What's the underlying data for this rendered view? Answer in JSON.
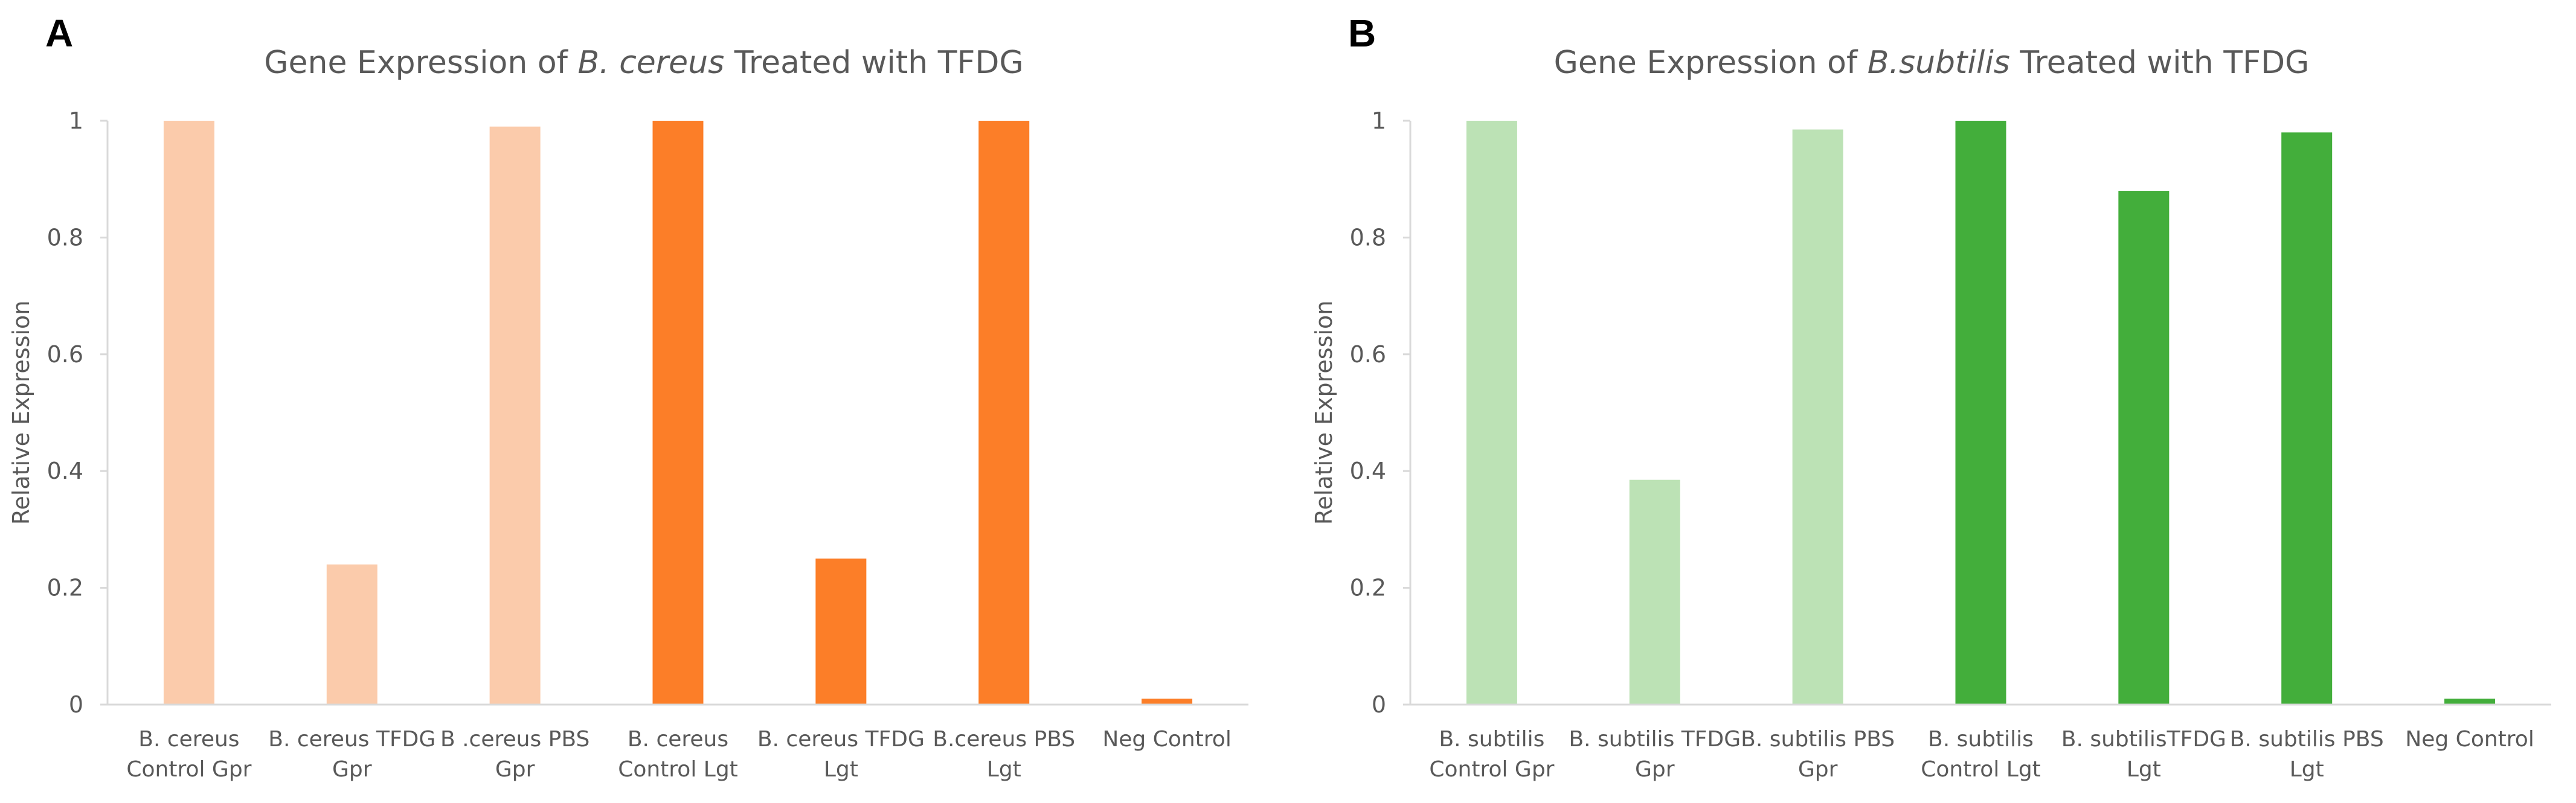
{
  "chart_data": [
    {
      "panel_label": "A",
      "type": "bar",
      "title_prefix": "Gene Expression of ",
      "title_italic": "B. cereus",
      "title_suffix": " Treated with TFDG",
      "ylabel": "Relative Expression",
      "xlabel": "",
      "ylim": [
        0,
        1
      ],
      "yticks": [
        "0",
        "0.2",
        "0.4",
        "0.6",
        "0.8",
        "1"
      ],
      "grid": false,
      "categories": [
        [
          "B. cereus",
          "Control Gpr"
        ],
        [
          "B. cereus TFDG",
          "Gpr"
        ],
        [
          "B .cereus PBS",
          "Gpr"
        ],
        [
          "B. cereus",
          "Control Lgt"
        ],
        [
          "B. cereus TFDG",
          "Lgt"
        ],
        [
          "B.cereus PBS",
          "Lgt"
        ],
        [
          "Neg Control"
        ]
      ],
      "values": [
        1.0,
        0.24,
        0.99,
        1.0,
        0.25,
        1.0,
        0.01
      ],
      "colors": [
        "#FBCBAB",
        "#FBCBAB",
        "#FBCBAB",
        "#FC7E28",
        "#FC7E28",
        "#FC7E28",
        "#FC7E28"
      ]
    },
    {
      "panel_label": "B",
      "type": "bar",
      "title_prefix": "Gene Expression of ",
      "title_italic": "B.subtilis",
      "title_suffix": " Treated with TFDG",
      "ylabel": "Relative Expression",
      "xlabel": "",
      "ylim": [
        0,
        1
      ],
      "yticks": [
        "0",
        "0.2",
        "0.4",
        "0.6",
        "0.8",
        "1"
      ],
      "grid": false,
      "categories": [
        [
          "B. subtilis",
          "Control Gpr"
        ],
        [
          "B. subtilis TFDG",
          "Gpr"
        ],
        [
          "B. subtilis PBS",
          "Gpr"
        ],
        [
          "B. subtilis",
          "Control Lgt"
        ],
        [
          "B. subtilisTFDG",
          "Lgt"
        ],
        [
          "B. subtilis PBS",
          "Lgt"
        ],
        [
          "Neg Control"
        ]
      ],
      "values": [
        1.0,
        0.385,
        0.985,
        1.0,
        0.88,
        0.98,
        0.01
      ],
      "colors": [
        "#BCE2B5",
        "#BCE2B5",
        "#BCE2B5",
        "#43AE3B",
        "#43AE3B",
        "#43AE3B",
        "#43AE3B"
      ]
    }
  ]
}
